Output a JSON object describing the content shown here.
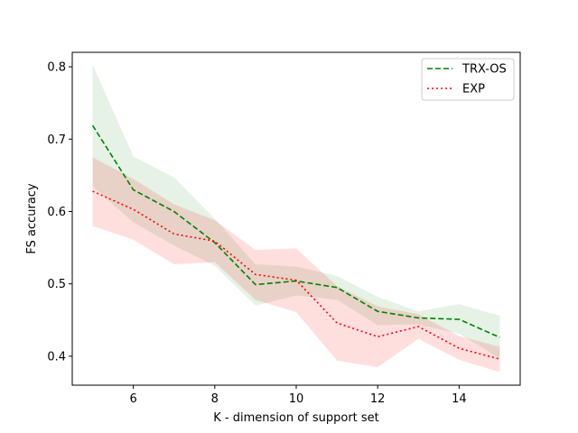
{
  "chart_data": {
    "type": "line",
    "title": "",
    "xlabel": "K - dimension of support set",
    "ylabel": "FS accuracy",
    "xlim": [
      4.5,
      15.5
    ],
    "ylim": [
      0.36,
      0.82
    ],
    "xticks": [
      6,
      8,
      10,
      12,
      14
    ],
    "yticks": [
      0.4,
      0.5,
      0.6,
      0.7,
      0.8
    ],
    "grid": false,
    "legend_position": "top-right",
    "x": [
      5,
      6,
      7,
      8,
      9,
      10,
      11,
      12,
      13,
      14,
      15
    ],
    "series": [
      {
        "name": "TRX-OS",
        "color": "#008000",
        "line_style": "dashed",
        "values": [
          0.719,
          0.63,
          0.6,
          0.557,
          0.499,
          0.504,
          0.495,
          0.462,
          0.453,
          0.451,
          0.426
        ],
        "lower": [
          0.635,
          0.585,
          0.553,
          0.525,
          0.47,
          0.484,
          0.478,
          0.443,
          0.444,
          0.431,
          0.397
        ],
        "upper": [
          0.803,
          0.676,
          0.647,
          0.59,
          0.527,
          0.524,
          0.511,
          0.482,
          0.462,
          0.472,
          0.456
        ]
      },
      {
        "name": "EXP",
        "color": "#ff0000",
        "line_style": "dotted",
        "values": [
          0.628,
          0.603,
          0.569,
          0.559,
          0.513,
          0.505,
          0.446,
          0.427,
          0.441,
          0.411,
          0.396
        ],
        "lower": [
          0.58,
          0.561,
          0.527,
          0.53,
          0.478,
          0.461,
          0.394,
          0.385,
          0.424,
          0.395,
          0.378
        ],
        "upper": [
          0.675,
          0.645,
          0.61,
          0.588,
          0.547,
          0.549,
          0.497,
          0.469,
          0.458,
          0.428,
          0.413
        ]
      }
    ]
  }
}
